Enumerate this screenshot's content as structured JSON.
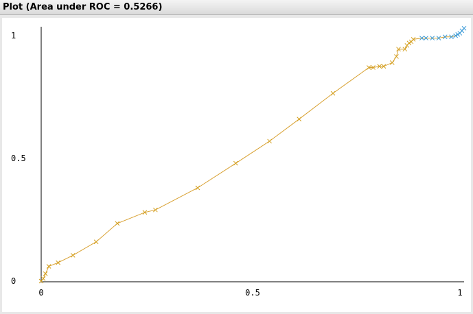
{
  "window": {
    "title": "Plot (Area under ROC = 0.5266)"
  },
  "chart_data": {
    "type": "line",
    "title": "Plot (Area under ROC = 0.5266)",
    "xlabel": "",
    "ylabel": "",
    "xlim": [
      0,
      1
    ],
    "ylim": [
      0,
      1
    ],
    "grid": false,
    "x_ticks": [
      "0",
      "0.5",
      "1"
    ],
    "y_ticks": [
      "0",
      "0.5",
      "1"
    ],
    "colors": {
      "orange_segment": "#d4a020",
      "blue_segment": "#3a9ad8",
      "line": "#d8a030",
      "axis": "#000000"
    },
    "series": [
      {
        "x": [
          0.0,
          0.005,
          0.01,
          0.018,
          0.04,
          0.075,
          0.13,
          0.18,
          0.245,
          0.27,
          0.37,
          0.46,
          0.54,
          0.61,
          0.69,
          0.775,
          0.785,
          0.8,
          0.81,
          0.83,
          0.84,
          0.845,
          0.86,
          0.865,
          0.87,
          0.875,
          0.88,
          0.9,
          0.91,
          0.925,
          0.94,
          0.955,
          0.97,
          0.98,
          0.985,
          0.99,
          0.995,
          1.0
        ],
        "y": [
          0.0,
          0.01,
          0.03,
          0.06,
          0.075,
          0.105,
          0.16,
          0.235,
          0.28,
          0.29,
          0.38,
          0.48,
          0.57,
          0.66,
          0.765,
          0.87,
          0.87,
          0.875,
          0.875,
          0.89,
          0.915,
          0.945,
          0.945,
          0.96,
          0.97,
          0.975,
          0.985,
          0.99,
          0.99,
          0.99,
          0.99,
          0.995,
          0.995,
          1.0,
          1.005,
          1.01,
          1.02,
          1.03
        ],
        "colors": [
          "#d4a020",
          "#d4a020",
          "#d4a020",
          "#d4a020",
          "#d4a020",
          "#d4a020",
          "#d4a020",
          "#d4a020",
          "#d4a020",
          "#d4a020",
          "#d4a020",
          "#d4a020",
          "#d4a020",
          "#d4a020",
          "#d4a020",
          "#d4a020",
          "#d4a020",
          "#d4a020",
          "#d4a020",
          "#d4a020",
          "#d4a020",
          "#d4a020",
          "#d4a020",
          "#d4a020",
          "#d4a020",
          "#d4a020",
          "#d4a020",
          "#3a9ad8",
          "#3a9ad8",
          "#3a9ad8",
          "#3a9ad8",
          "#3a9ad8",
          "#3a9ad8",
          "#3a9ad8",
          "#3a9ad8",
          "#3a9ad8",
          "#3a9ad8",
          "#3a9ad8"
        ]
      }
    ]
  }
}
